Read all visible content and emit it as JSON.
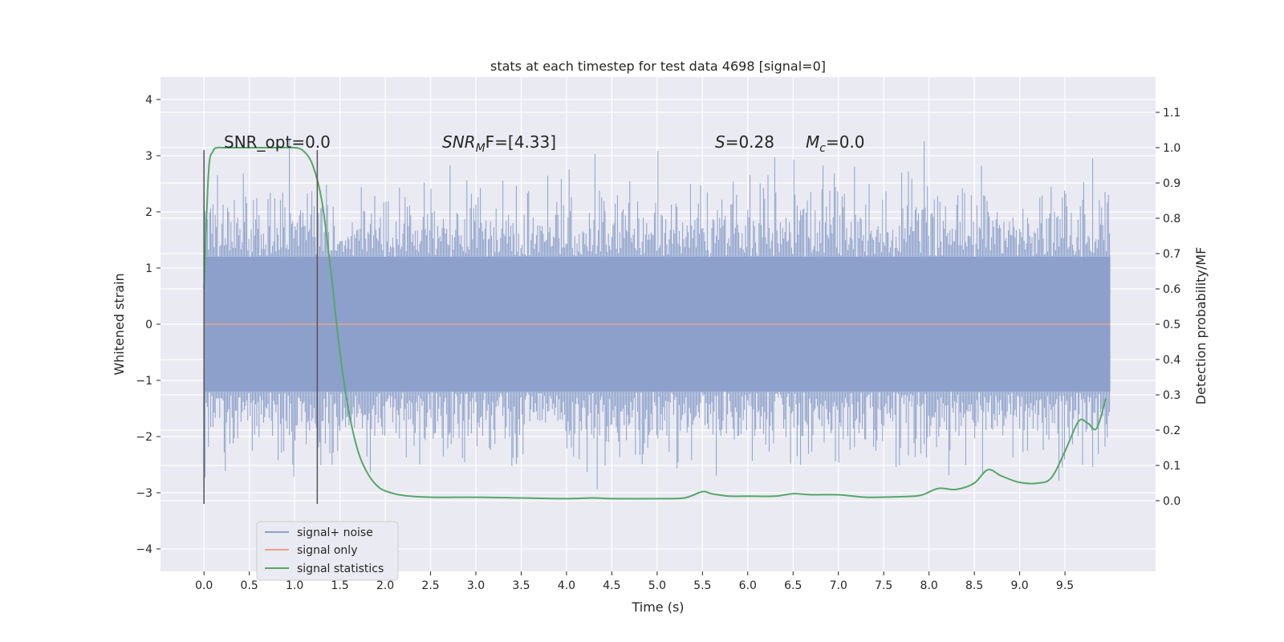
{
  "chart_data": {
    "type": "line",
    "title": "stats at each timestep for test data 4698 [signal=0]",
    "xlabel": "Time (s)",
    "ylabel_left": "Whitened strain",
    "ylabel_right": "Detection probability/MF",
    "xlim": [
      -0.48,
      10.5
    ],
    "ylim_left": [
      -4.4,
      4.4
    ],
    "ylim_right": [
      -0.2,
      1.2
    ],
    "x_ticks": [
      "0.0",
      "0.5",
      "1.0",
      "1.5",
      "2.0",
      "2.5",
      "3.0",
      "3.5",
      "4.0",
      "4.5",
      "5.0",
      "5.5",
      "6.0",
      "6.5",
      "7.0",
      "7.5",
      "8.0",
      "8.5",
      "9.0",
      "9.5"
    ],
    "y_left_ticks": [
      "4",
      "3",
      "2",
      "1",
      "0",
      "−1",
      "−2",
      "−3",
      "−4"
    ],
    "y_right_ticks": [
      "1.1",
      "1.0",
      "0.9",
      "0.8",
      "0.7",
      "0.6",
      "0.5",
      "0.4",
      "0.3",
      "0.2",
      "0.1",
      "0.0"
    ],
    "grid": true,
    "legend_placement": "lower-left",
    "annotations": {
      "snr_opt": "SNR_opt=0.0",
      "snr_mf_italic": "SNR",
      "snr_mf_sub": "M",
      "snr_mf_rest": "F=[4.33]",
      "s_italic": "S",
      "s_rest": "=0.28",
      "mc_italic": "M",
      "mc_sub": "c",
      "mc_rest": "=0.0"
    },
    "noise": {
      "x_range": [
        0.0,
        10.0
      ],
      "core_amplitude": 1.2,
      "peak_min": -3.6,
      "peak_max": 3.95
    },
    "vlines_x": [
      0.0,
      1.25
    ],
    "vlines_ylim": [
      -3.2,
      3.1
    ],
    "series": [
      {
        "name": "signal+ noise",
        "color": "#8da0cb"
      },
      {
        "name": "signal only",
        "color": "#e8a38a",
        "x": [
          0.0,
          10.0
        ],
        "y": [
          0.0,
          0.0
        ]
      },
      {
        "name": "signal statistics",
        "color": "#55a868",
        "x": [
          0.0,
          0.05,
          0.1,
          0.15,
          0.2,
          0.3,
          0.5,
          0.8,
          1.0,
          1.1,
          1.2,
          1.3,
          1.4,
          1.5,
          1.6,
          1.7,
          1.8,
          1.9,
          2.0,
          2.2,
          2.5,
          3.0,
          3.5,
          4.0,
          4.3,
          4.5,
          5.0,
          5.3,
          5.5,
          5.6,
          5.8,
          6.0,
          6.3,
          6.5,
          6.7,
          7.0,
          7.3,
          7.6,
          7.9,
          8.1,
          8.3,
          8.5,
          8.65,
          8.8,
          9.0,
          9.2,
          9.35,
          9.5,
          9.65,
          9.75,
          9.85,
          9.95
        ],
        "y": [
          0.6,
          0.93,
          0.99,
          1.0,
          1.0,
          1.0,
          1.0,
          1.0,
          1.0,
          0.99,
          0.95,
          0.85,
          0.65,
          0.42,
          0.25,
          0.14,
          0.08,
          0.045,
          0.028,
          0.015,
          0.01,
          0.01,
          0.008,
          0.006,
          0.008,
          0.006,
          0.006,
          0.008,
          0.026,
          0.02,
          0.013,
          0.013,
          0.013,
          0.02,
          0.017,
          0.017,
          0.01,
          0.011,
          0.015,
          0.035,
          0.032,
          0.05,
          0.088,
          0.07,
          0.052,
          0.05,
          0.065,
          0.14,
          0.225,
          0.22,
          0.205,
          0.29
        ]
      }
    ]
  }
}
